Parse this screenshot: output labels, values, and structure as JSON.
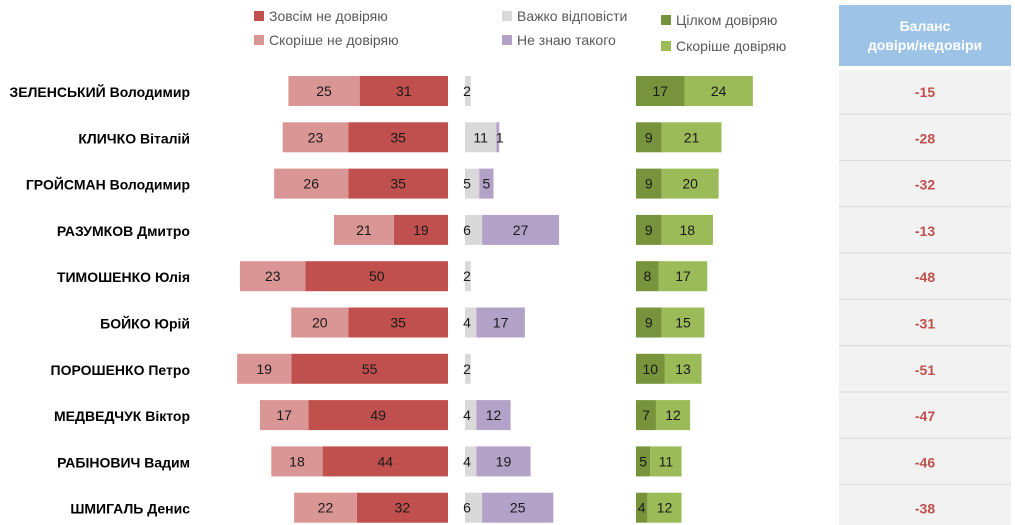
{
  "legend": {
    "not_trust_at_all": "Зовсім не довіряю",
    "rather_not_trust": "Скоріше не довіряю",
    "hard_to_say": "Важко відповісти",
    "dont_know": "Не знаю такого",
    "fully_trust": "Цілком довіряю",
    "rather_trust": "Скоріше довіряю"
  },
  "balance_header": {
    "line1": "Баланс",
    "line2": "довіри/недовіри"
  },
  "colors": {
    "not_trust_at_all": "#c0504d",
    "rather_not_trust": "#da9694",
    "hard_to_say": "#d9d9d9",
    "dont_know": "#b3a2c7",
    "fully_trust": "#77933c",
    "rather_trust": "#9bbb59",
    "balance_text": "#c0504d",
    "balance_header_bg": "#9dc3e6",
    "balance_bg": "#f2f2f2"
  },
  "chart_data": {
    "type": "bar",
    "categories": [
      "ЗЕЛЕНСЬКИЙ Володимир",
      "КЛИЧКО Віталій",
      "ГРОЙСМАН Володимир",
      "РАЗУМКОВ Дмитро",
      "ТИМОШЕНКО Юлія",
      "БОЙКО Юрій",
      "ПОРОШЕНКО Петро",
      "МЕДВЕДЧУК Віктор",
      "РАБІНОВИЧ Вадим",
      "ШМИГАЛЬ Денис"
    ],
    "series": [
      {
        "name": "Зовсім не довіряю",
        "values": [
          31,
          35,
          35,
          19,
          50,
          35,
          55,
          49,
          44,
          32
        ]
      },
      {
        "name": "Скоріше не довіряю",
        "values": [
          25,
          23,
          26,
          21,
          23,
          20,
          19,
          17,
          18,
          22
        ]
      },
      {
        "name": "Важко відповісти",
        "values": [
          2,
          11,
          5,
          6,
          2,
          4,
          2,
          4,
          4,
          6
        ]
      },
      {
        "name": "Не знаю такого",
        "values": [
          0,
          1,
          5,
          27,
          0,
          17,
          0,
          12,
          19,
          25
        ]
      },
      {
        "name": "Цілком довіряю",
        "values": [
          17,
          9,
          9,
          9,
          8,
          9,
          10,
          7,
          5,
          4
        ]
      },
      {
        "name": "Скоріше довіряю",
        "values": [
          24,
          21,
          20,
          18,
          17,
          15,
          13,
          12,
          11,
          12
        ]
      }
    ],
    "value_labels": [
      {
        "not_at_all": "31",
        "rather_not": "25",
        "hard": "2",
        "dont_know": "",
        "fully": "17",
        "rather": "24"
      },
      {
        "not_at_all": "35",
        "rather_not": "23",
        "hard": "11",
        "dont_know": "1",
        "fully": "9",
        "rather": "21"
      },
      {
        "not_at_all": "35",
        "rather_not": "26",
        "hard": "5",
        "dont_know": "5",
        "fully": "9",
        "rather": "20"
      },
      {
        "not_at_all": "19",
        "rather_not": "21",
        "hard": "6",
        "dont_know": "27",
        "fully": "9",
        "rather": "18"
      },
      {
        "not_at_all": "50",
        "rather_not": "23",
        "hard": "2",
        "dont_know": "",
        "fully": "8",
        "rather": "17"
      },
      {
        "not_at_all": "35",
        "rather_not": "20",
        "hard": "4",
        "dont_know": "17",
        "fully": "9",
        "rather": "15"
      },
      {
        "not_at_all": "55",
        "rather_not": "19",
        "hard": "2",
        "dont_know": "",
        "fully": "10",
        "rather": "13"
      },
      {
        "not_at_all": "49",
        "rather_not": "17",
        "hard": "4",
        "dont_know": "12",
        "fully": "7",
        "rather": "12"
      },
      {
        "not_at_all": "44",
        "rather_not": "18",
        "hard": "4",
        "dont_know": "19",
        "fully": "5",
        "rather": "11"
      },
      {
        "not_at_all": "32",
        "rather_not": "22",
        "hard": "6",
        "dont_know": "25",
        "fully": "4",
        "rather": "12"
      }
    ],
    "balance": [
      "-15",
      "-28",
      "-32",
      "-13",
      "-48",
      "-31",
      "-51",
      "-47",
      "-46",
      "-38"
    ]
  }
}
